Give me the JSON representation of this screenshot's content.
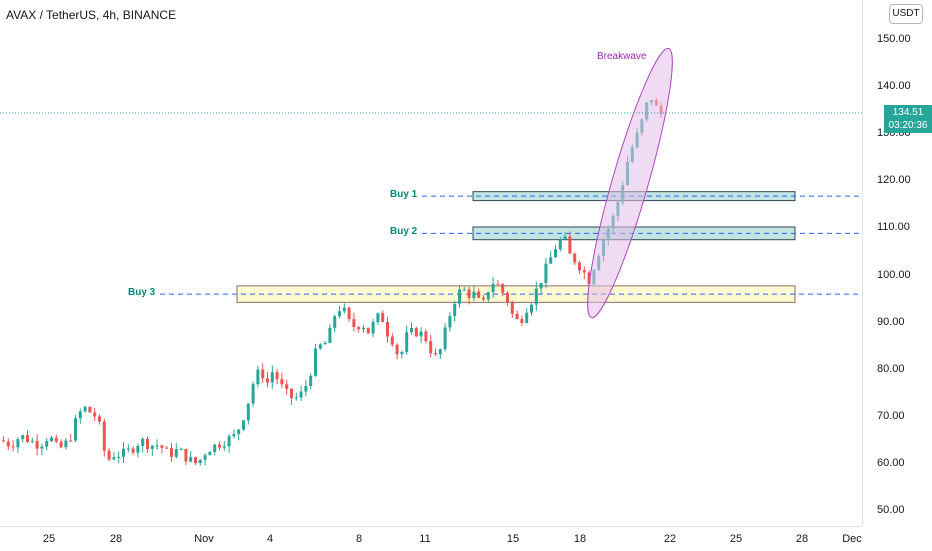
{
  "header": {
    "title": "AVAX / TetherUS, 4h, BINANCE",
    "currency": "USDT"
  },
  "price_axis": {
    "ticks": [
      "150.00",
      "140.00",
      "130.00",
      "120.00",
      "110.00",
      "100.00",
      "90.00",
      "80.00",
      "70.00",
      "60.00",
      "50.00"
    ],
    "current_price": "134.51",
    "countdown": "03:20:36"
  },
  "time_axis": {
    "ticks": [
      "25",
      "28",
      "Nov",
      "4",
      "8",
      "11",
      "15",
      "18",
      "22",
      "25",
      "28",
      "Dec"
    ]
  },
  "annotations": {
    "breakwave": "Breakwave",
    "buy_zones": [
      {
        "label": "Buy 1",
        "low": 115.9,
        "high": 117.8
      },
      {
        "label": "Buy 2",
        "low": 107.6,
        "high": 110.3
      },
      {
        "label": "Buy 3",
        "low": 94.3,
        "high": 97.8
      }
    ]
  },
  "colors": {
    "up": "#26a69a",
    "down": "#ef5350",
    "accent": "#26a69a",
    "breakwave": "#9c27b0",
    "buy_zone_fill": "#b2dfdb",
    "buy3_zone_fill": "#fff9c4",
    "buy_line": "#2962ff"
  },
  "chart_data": {
    "type": "candlestick",
    "symbol": "AVAX / TetherUS",
    "interval": "4h",
    "exchange": "BINANCE",
    "y_range": [
      48,
      155
    ],
    "close_path": [
      [
        0,
        65
      ],
      [
        6,
        64
      ],
      [
        12,
        66
      ],
      [
        18,
        65
      ],
      [
        24,
        64
      ],
      [
        30,
        66
      ],
      [
        36,
        63
      ],
      [
        40,
        64
      ],
      [
        44,
        66
      ],
      [
        48,
        70
      ],
      [
        52,
        72
      ],
      [
        56,
        71
      ],
      [
        60,
        70
      ],
      [
        64,
        66
      ],
      [
        66,
        60
      ],
      [
        70,
        62
      ],
      [
        76,
        62
      ],
      [
        82,
        63
      ],
      [
        88,
        65
      ],
      [
        94,
        64
      ],
      [
        100,
        64
      ],
      [
        106,
        62
      ],
      [
        112,
        63
      ],
      [
        118,
        61
      ],
      [
        124,
        60
      ],
      [
        130,
        63
      ],
      [
        136,
        64
      ],
      [
        142,
        65
      ],
      [
        148,
        66
      ],
      [
        152,
        69
      ],
      [
        156,
        73
      ],
      [
        160,
        78
      ],
      [
        164,
        80
      ],
      [
        168,
        77
      ],
      [
        172,
        80
      ],
      [
        176,
        77
      ],
      [
        180,
        75
      ],
      [
        184,
        74
      ],
      [
        188,
        74
      ],
      [
        192,
        76
      ],
      [
        196,
        80
      ],
      [
        200,
        85
      ],
      [
        204,
        85
      ],
      [
        208,
        88
      ],
      [
        212,
        93
      ],
      [
        216,
        93
      ],
      [
        220,
        90
      ],
      [
        224,
        89
      ],
      [
        228,
        90
      ],
      [
        232,
        88
      ],
      [
        236,
        90
      ],
      [
        240,
        92
      ],
      [
        244,
        88
      ],
      [
        248,
        86
      ],
      [
        252,
        82
      ],
      [
        256,
        87
      ],
      [
        260,
        88
      ],
      [
        264,
        88
      ],
      [
        268,
        87
      ],
      [
        272,
        84
      ],
      [
        276,
        82
      ],
      [
        280,
        87
      ],
      [
        284,
        92
      ],
      [
        288,
        96
      ],
      [
        292,
        97
      ],
      [
        296,
        96
      ],
      [
        300,
        96
      ],
      [
        304,
        93
      ],
      [
        308,
        97
      ],
      [
        312,
        99
      ],
      [
        316,
        97
      ],
      [
        320,
        95
      ],
      [
        324,
        91
      ],
      [
        328,
        90
      ],
      [
        332,
        93
      ],
      [
        336,
        95
      ],
      [
        340,
        98
      ],
      [
        344,
        101
      ],
      [
        348,
        104
      ],
      [
        352,
        107
      ],
      [
        356,
        108
      ],
      [
        360,
        104
      ],
      [
        364,
        103
      ],
      [
        368,
        101
      ],
      [
        372,
        99
      ],
      [
        376,
        103
      ],
      [
        380,
        107
      ],
      [
        384,
        110
      ],
      [
        388,
        113
      ],
      [
        392,
        118
      ],
      [
        396,
        124
      ],
      [
        400,
        128
      ],
      [
        404,
        131
      ],
      [
        408,
        136
      ],
      [
        412,
        138
      ],
      [
        416,
        134
      ],
      [
        420,
        135
      ]
    ],
    "last_price": 134.51
  }
}
